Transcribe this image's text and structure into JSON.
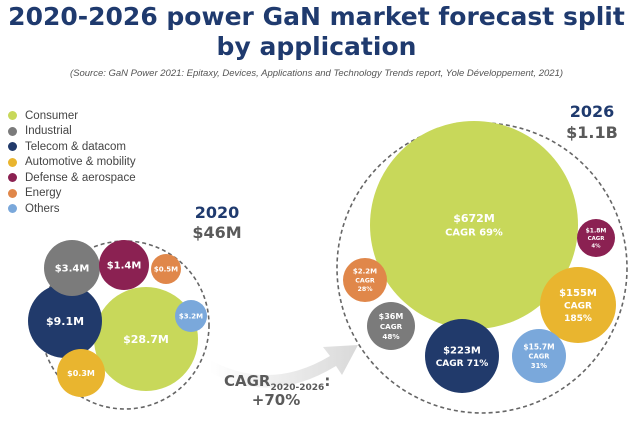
{
  "title_line1": "2020-2026 power GaN market forecast split",
  "title_line2": "by application",
  "source": "(Source: GaN Power 2021: Epitaxy, Devices, Applications and Technology Trends report, Yole Développement, 2021)",
  "colors": {
    "consumer": "#c8d85a",
    "industrial": "#7b7b7b",
    "telecom": "#213a6b",
    "automotive": "#e9b52f",
    "defense": "#8b2152",
    "energy": "#e0874a",
    "others": "#7aa8db",
    "title": "#1f3a6e",
    "year": "#1f3a6e",
    "total": "#5a5a5a"
  },
  "chart_data": [
    {
      "type": "bubble",
      "year_label": "2020",
      "total_label": "$46M",
      "legend": [
        {
          "key": "consumer",
          "label": "Consumer"
        },
        {
          "key": "industrial",
          "label": "Industrial"
        },
        {
          "key": "telecom",
          "label": "Telecom & datacom"
        },
        {
          "key": "automotive",
          "label": "Automotive & mobility"
        },
        {
          "key": "defense",
          "label": "Defense & aerospace"
        },
        {
          "key": "energy",
          "label": "Energy"
        },
        {
          "key": "others",
          "label": "Others"
        }
      ],
      "bubbles": [
        {
          "key": "consumer",
          "value": 28.7,
          "label": "$28.7M"
        },
        {
          "key": "telecom",
          "value": 9.1,
          "label": "$9.1M"
        },
        {
          "key": "industrial",
          "value": 3.4,
          "label": "$3.4M"
        },
        {
          "key": "defense",
          "value": 1.4,
          "label": "$1.4M"
        },
        {
          "key": "energy",
          "value": 0.5,
          "label": "$0.5M"
        },
        {
          "key": "others",
          "value": 3.2,
          "label": "$3.2M"
        },
        {
          "key": "automotive",
          "value": 0.3,
          "label": "$0.3M"
        }
      ]
    },
    {
      "type": "bubble",
      "year_label": "2026",
      "total_label": "$1.1B",
      "bubbles": [
        {
          "key": "consumer",
          "value": 672,
          "label": "$672M",
          "cagr": "CAGR 69%"
        },
        {
          "key": "telecom",
          "value": 223,
          "label": "$223M",
          "cagr": "CAGR 71%"
        },
        {
          "key": "automotive",
          "value": 155,
          "label": "$155M",
          "cagr": "CAGR",
          "cagr2": "185%"
        },
        {
          "key": "industrial",
          "value": 36,
          "label": "$36M",
          "cagr": "CAGR",
          "cagr2": "48%"
        },
        {
          "key": "energy",
          "value": 2.2,
          "label": "$2.2M",
          "cagr": "CAGR",
          "cagr2": "28%"
        },
        {
          "key": "defense",
          "value": 1.8,
          "label": "$1.8M",
          "cagr": "CAGR",
          "cagr2": "4%"
        },
        {
          "key": "others",
          "value": 15.7,
          "label": "$15.7M",
          "cagr": "CAGR",
          "cagr2": "31%"
        }
      ]
    }
  ],
  "arrow": {
    "cagr_label": "CAGR",
    "cagr_sub": "2020-2026",
    "colon": ":",
    "cagr_value": "+70%"
  }
}
